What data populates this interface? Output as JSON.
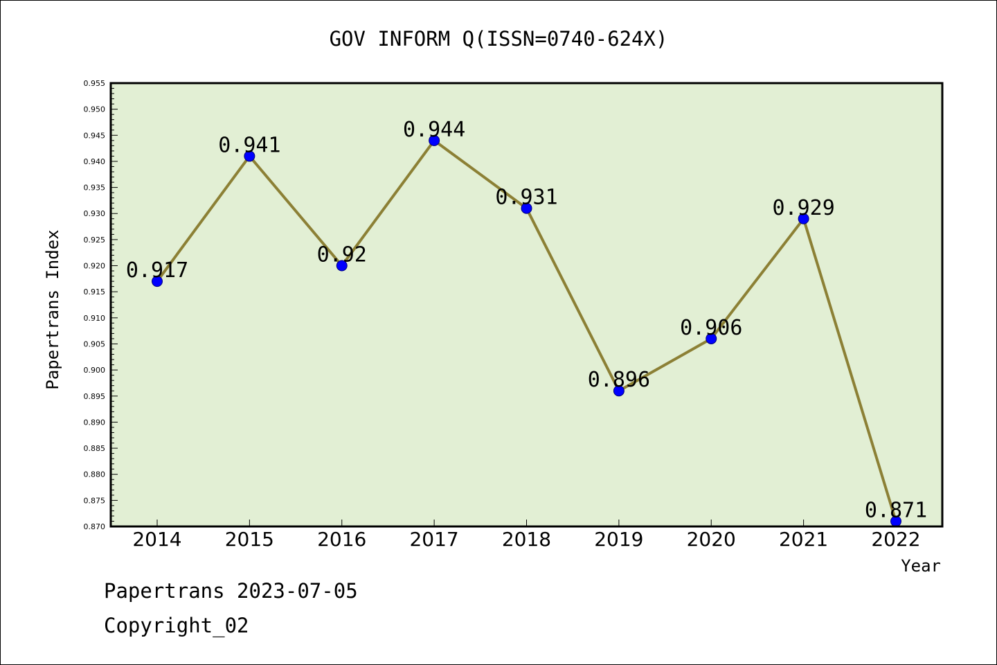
{
  "chart_data": {
    "type": "line",
    "title": "GOV INFORM Q(ISSN=0740-624X)",
    "xlabel": "Year",
    "ylabel": "Papertrans Index",
    "categories": [
      "2014",
      "2015",
      "2016",
      "2017",
      "2018",
      "2019",
      "2020",
      "2021",
      "2022"
    ],
    "values": [
      0.917,
      0.941,
      0.92,
      0.944,
      0.931,
      0.896,
      0.906,
      0.929,
      0.871
    ],
    "data_labels": [
      "0.917",
      "0.941",
      "0.92",
      "0.944",
      "0.931",
      "0.896",
      "0.906",
      "0.929",
      "0.871"
    ],
    "ylim": [
      0.87,
      0.955
    ],
    "yticks": [
      "0.870",
      "0.875",
      "0.880",
      "0.885",
      "0.890",
      "0.895",
      "0.900",
      "0.905",
      "0.910",
      "0.915",
      "0.920",
      "0.925",
      "0.930",
      "0.935",
      "0.940",
      "0.945",
      "0.950",
      "0.955"
    ],
    "grid": false,
    "legend": "none",
    "colors": {
      "plot_background": "#e2efd4",
      "line": "#8c8035",
      "marker": "#0000ff",
      "axis": "#000000"
    }
  },
  "footer": {
    "line1": "Papertrans 2023-07-05",
    "line2": "Copyright_02"
  }
}
